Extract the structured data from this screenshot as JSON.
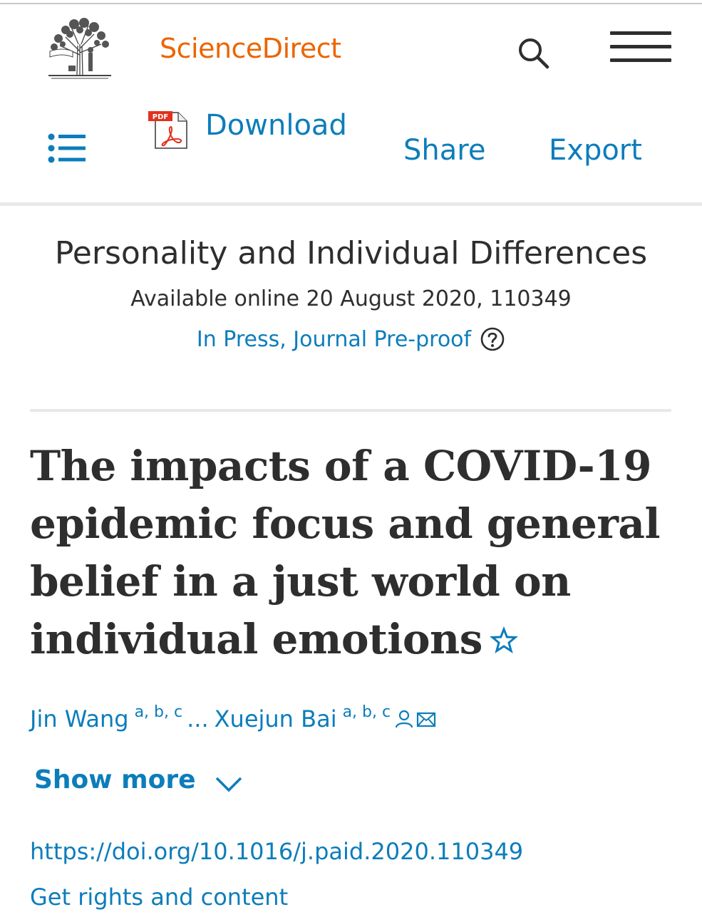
{
  "header": {
    "brand": "ScienceDirect",
    "brand_color": "#eb6500",
    "publisher_logo": "elsevier-tree-logo",
    "search_icon": "search-icon",
    "menu_icon": "hamburger-menu-icon"
  },
  "toolbar": {
    "outline_icon": "outline-list-icon",
    "download_label": "Download",
    "pdf_badge": "PDF",
    "share_label": "Share",
    "export_label": "Export"
  },
  "journal": {
    "title": "Personality and Individual Differences",
    "available": "Available online 20 August 2020, 110349",
    "status": "In Press, Journal Pre-proof"
  },
  "article": {
    "title_lines": [
      "The impacts of a COVID-19",
      "epidemic focus and general",
      "belief in a just world on",
      "individual emotions"
    ],
    "title_icon": "star-icon"
  },
  "authors": {
    "first": "Jin Wang",
    "first_affil": "a, b, c",
    "ellipsis": "...",
    "last": "Xuejun Bai",
    "last_affil": "a, b, c"
  },
  "show_more": "Show more",
  "doi": "https://doi.org/10.1016/j.paid.2020.110349",
  "rights": "Get rights and content",
  "colors": {
    "link": "#0c7dbb",
    "text": "#2e2e2e",
    "rule": "#e8e8e8",
    "pdf_red": "#e0321e"
  }
}
